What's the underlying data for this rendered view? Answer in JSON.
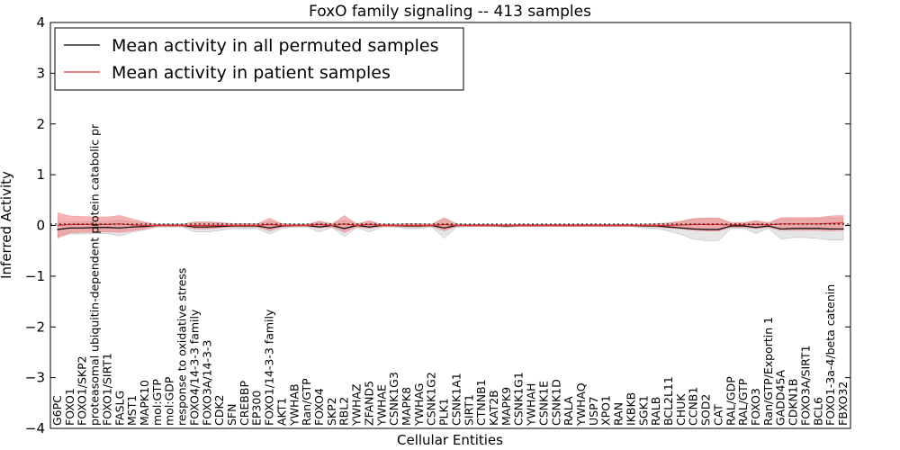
{
  "chart_data": {
    "type": "line",
    "title": "FoxO family signaling -- 413 samples",
    "xlabel": "Cellular Entities",
    "ylabel": "Inferred Activity",
    "ylim": [
      -4,
      4
    ],
    "yticks": [
      -4,
      -3,
      -2,
      -1,
      0,
      1,
      2,
      3,
      4
    ],
    "ytick_labels": [
      "−4",
      "−3",
      "−2",
      "−1",
      "0",
      "1",
      "2",
      "3",
      "4"
    ],
    "legend_position": "top-left",
    "grid": false,
    "categories": [
      "G6PC",
      "FOXO1",
      "FOXO1/SKP2",
      "proteasomal ubiquitin-dependent protein catabolic pr",
      "FOXO1/SIRT1",
      "FASLG",
      "MST1",
      "MAPK10",
      "mol:GTP",
      "mol:GDP",
      "response to oxidative stress",
      "FOXO4/14-3-3 family",
      "FOXO3A/14-3-3",
      "CDK2",
      "SFN",
      "CREBBP",
      "EP300",
      "FOXO1/14-3-3 family",
      "AKT1",
      "YWHAB",
      "Ran/GTP",
      "FOXO4",
      "SKP2",
      "RBL2",
      "YWHAZ",
      "ZFAND5",
      "YWHAE",
      "CSNK1G3",
      "MAPK8",
      "YWHAG",
      "CSNK1G2",
      "PLK1",
      "CSNK1A1",
      "SIRT1",
      "CTNNB1",
      "KAT2B",
      "MAPK9",
      "CSNK1G1",
      "YWHAH",
      "CSNK1E",
      "CSNK1D",
      "RALA",
      "YWHAQ",
      "USP7",
      "XPO1",
      "RAN",
      "IKBKB",
      "SGK1",
      "RALB",
      "BCL2L11",
      "CHUK",
      "CCNB1",
      "SOD2",
      "CAT",
      "RAL/GDP",
      "RAL/GTP",
      "FOXO3",
      "Ran/GTP/Exportin 1",
      "GADD45A",
      "CDKN1B",
      "FOXO3A/SIRT1",
      "BCL6",
      "FOXO1-3a-4/beta catenin",
      "FBXO32"
    ],
    "series": [
      {
        "name": "Mean activity in all permuted samples",
        "color": "#000000",
        "band_color": "#d9d9d9",
        "values": [
          -0.08,
          -0.05,
          -0.05,
          -0.04,
          -0.04,
          -0.05,
          -0.03,
          -0.02,
          0.0,
          0.0,
          0.0,
          -0.03,
          -0.03,
          -0.02,
          -0.01,
          -0.01,
          -0.01,
          -0.05,
          -0.01,
          0.0,
          0.0,
          -0.03,
          0.0,
          -0.06,
          0.0,
          -0.03,
          0.0,
          0.0,
          -0.01,
          -0.01,
          0.0,
          -0.05,
          0.0,
          0.0,
          0.0,
          0.0,
          -0.01,
          0.0,
          0.0,
          0.0,
          0.0,
          0.0,
          0.0,
          0.0,
          0.0,
          0.0,
          0.0,
          -0.01,
          -0.01,
          -0.03,
          -0.05,
          -0.07,
          -0.08,
          -0.08,
          -0.01,
          -0.01,
          -0.04,
          -0.01,
          -0.07,
          -0.06,
          -0.06,
          -0.06,
          -0.07,
          -0.07
        ],
        "band_half_width": [
          0.14,
          0.12,
          0.12,
          0.12,
          0.12,
          0.16,
          0.1,
          0.07,
          0.03,
          0.03,
          0.03,
          0.1,
          0.1,
          0.08,
          0.05,
          0.05,
          0.05,
          0.12,
          0.05,
          0.03,
          0.03,
          0.1,
          0.04,
          0.16,
          0.04,
          0.1,
          0.03,
          0.03,
          0.05,
          0.05,
          0.03,
          0.2,
          0.04,
          0.02,
          0.02,
          0.02,
          0.03,
          0.02,
          0.02,
          0.02,
          0.02,
          0.02,
          0.02,
          0.02,
          0.02,
          0.02,
          0.02,
          0.04,
          0.05,
          0.08,
          0.13,
          0.2,
          0.22,
          0.22,
          0.05,
          0.05,
          0.12,
          0.05,
          0.2,
          0.18,
          0.18,
          0.2,
          0.22,
          0.22
        ]
      },
      {
        "name": "Mean activity in patient samples",
        "color": "#e03030",
        "band_color": "#f08080",
        "values": [
          0.0,
          0.02,
          0.02,
          0.02,
          0.02,
          0.03,
          0.01,
          0.0,
          0.0,
          0.0,
          0.0,
          0.0,
          0.0,
          0.0,
          0.0,
          0.0,
          0.0,
          0.02,
          0.0,
          0.0,
          0.0,
          0.02,
          0.0,
          0.03,
          0.0,
          0.02,
          0.0,
          0.0,
          0.0,
          0.0,
          0.0,
          0.02,
          0.0,
          0.0,
          0.0,
          0.0,
          0.0,
          0.0,
          0.0,
          0.0,
          0.0,
          0.0,
          0.0,
          0.0,
          0.0,
          0.0,
          0.0,
          0.0,
          0.0,
          0.0,
          0.01,
          0.02,
          0.02,
          0.02,
          0.01,
          0.01,
          0.02,
          0.01,
          0.03,
          0.03,
          0.03,
          0.03,
          0.04,
          0.05
        ],
        "band_half_width": [
          0.25,
          0.17,
          0.16,
          0.15,
          0.15,
          0.17,
          0.12,
          0.07,
          0.02,
          0.02,
          0.02,
          0.07,
          0.07,
          0.05,
          0.03,
          0.03,
          0.03,
          0.13,
          0.03,
          0.02,
          0.02,
          0.07,
          0.03,
          0.17,
          0.03,
          0.08,
          0.02,
          0.02,
          0.03,
          0.03,
          0.02,
          0.13,
          0.02,
          0.02,
          0.02,
          0.02,
          0.02,
          0.02,
          0.02,
          0.02,
          0.02,
          0.02,
          0.02,
          0.02,
          0.02,
          0.02,
          0.02,
          0.02,
          0.03,
          0.05,
          0.08,
          0.12,
          0.13,
          0.13,
          0.05,
          0.05,
          0.08,
          0.05,
          0.13,
          0.13,
          0.13,
          0.13,
          0.15,
          0.15
        ]
      }
    ]
  }
}
